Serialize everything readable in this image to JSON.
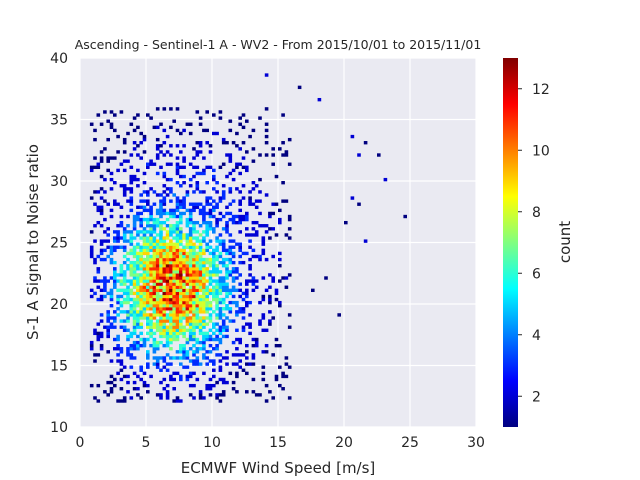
{
  "chart_data": {
    "type": "heatmap",
    "title": "Ascending - Sentinel-1 A - WV2 - From 2015/10/01 to 2015/11/01",
    "xlabel": "ECMWF Wind Speed [m/s]",
    "ylabel": "S-1 A Signal to Noise ratio",
    "xlim": [
      0,
      30
    ],
    "ylim": [
      10,
      40
    ],
    "xticks": [
      "0",
      "5",
      "10",
      "15",
      "20",
      "25",
      "30"
    ],
    "yticks": [
      "10",
      "15",
      "20",
      "25",
      "30",
      "35",
      "40"
    ],
    "grid": true,
    "colorbar": {
      "label": "count",
      "colormap": "jet",
      "range": [
        1,
        13
      ],
      "ticks": [
        "2",
        "4",
        "6",
        "8",
        "10",
        "12"
      ]
    },
    "density_model": {
      "description": "approximate 2D histogram of counts per bin",
      "bins_x": 120,
      "bins_y": 120,
      "peak_count": 13,
      "peak_wind_speed": 7,
      "peak_snr": 21.5,
      "core_x_range": [
        1.5,
        14
      ],
      "core_y_range": [
        13.5,
        33
      ],
      "outlier_points": [
        [
          14,
          38.5
        ],
        [
          16.5,
          37.5
        ],
        [
          18,
          36.5
        ],
        [
          20.5,
          33.5
        ],
        [
          21.5,
          33
        ],
        [
          22.5,
          32
        ],
        [
          21,
          32
        ],
        [
          24.5,
          27.2
        ],
        [
          20.5,
          28.5
        ],
        [
          21,
          28
        ],
        [
          20.2,
          26.5
        ],
        [
          21.5,
          25
        ],
        [
          18.5,
          22.2
        ],
        [
          17.5,
          21
        ],
        [
          19.5,
          19
        ],
        [
          23,
          30.2
        ]
      ]
    }
  }
}
